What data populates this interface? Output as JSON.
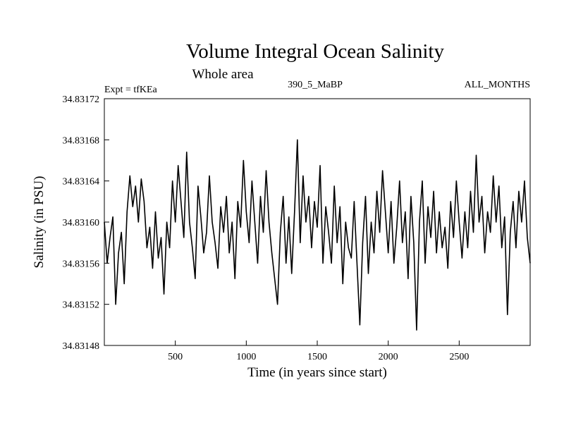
{
  "chart_data": {
    "type": "line",
    "title": "Volume Integral Ocean Salinity",
    "subtitle": "Whole area",
    "header_left": "Expt = tfKEa",
    "header_center": "390_5_MaBP",
    "header_right": "ALL_MONTHS",
    "xlabel": "Time (in years since start)",
    "ylabel": "Salinity (in PSU)",
    "xlim": [
      0,
      3000
    ],
    "ylim": [
      34.83148,
      34.83172
    ],
    "xticks": [
      500,
      1000,
      1500,
      2000,
      2500
    ],
    "yticks": [
      "34.83148",
      "34.83152",
      "34.83156",
      "34.83160",
      "34.83164",
      "34.83168",
      "34.83172"
    ],
    "grid": false,
    "series": [
      {
        "x": [
          0,
          20,
          40,
          60,
          80,
          100,
          120,
          140,
          160,
          180,
          200,
          220,
          240,
          260,
          280,
          300,
          320,
          340,
          360,
          380,
          400,
          420,
          440,
          460,
          480,
          500,
          520,
          540,
          560,
          580,
          600,
          620,
          640,
          660,
          680,
          700,
          720,
          740,
          760,
          780,
          800,
          820,
          840,
          860,
          880,
          900,
          920,
          940,
          960,
          980,
          1000,
          1020,
          1040,
          1060,
          1080,
          1100,
          1120,
          1140,
          1160,
          1180,
          1200,
          1220,
          1240,
          1260,
          1280,
          1300,
          1320,
          1340,
          1360,
          1380,
          1400,
          1420,
          1440,
          1460,
          1480,
          1500,
          1520,
          1540,
          1560,
          1580,
          1600,
          1620,
          1640,
          1660,
          1680,
          1700,
          1720,
          1740,
          1760,
          1780,
          1800,
          1820,
          1840,
          1860,
          1880,
          1900,
          1920,
          1940,
          1960,
          1980,
          2000,
          2020,
          2040,
          2060,
          2080,
          2100,
          2120,
          2140,
          2160,
          2180,
          2200,
          2220,
          2240,
          2260,
          2280,
          2300,
          2320,
          2340,
          2360,
          2380,
          2400,
          2420,
          2440,
          2460,
          2480,
          2500,
          2520,
          2540,
          2560,
          2580,
          2600,
          2620,
          2640,
          2660,
          2680,
          2700,
          2720,
          2740,
          2760,
          2780,
          2800,
          2820,
          2840,
          2860,
          2880,
          2900,
          2920,
          2940,
          2960,
          2980,
          3000
        ],
        "values": [
          34.8316,
          34.83156,
          34.831585,
          34.831605,
          34.83152,
          34.83157,
          34.83159,
          34.83154,
          34.83161,
          34.831645,
          34.831615,
          34.831635,
          34.8316,
          34.831642,
          34.83162,
          34.831575,
          34.831595,
          34.831555,
          34.83161,
          34.831565,
          34.831585,
          34.83153,
          34.8316,
          34.831575,
          34.83164,
          34.8316,
          34.831655,
          34.83162,
          34.831585,
          34.831668,
          34.8316,
          34.831575,
          34.831545,
          34.831635,
          34.831605,
          34.83157,
          34.83159,
          34.831645,
          34.8316,
          34.83158,
          34.831555,
          34.831615,
          34.83159,
          34.831625,
          34.83157,
          34.8316,
          34.831545,
          34.83162,
          34.831595,
          34.83166,
          34.83161,
          34.83158,
          34.83164,
          34.8316,
          34.83156,
          34.831625,
          34.83159,
          34.83165,
          34.8316,
          34.83157,
          34.831545,
          34.83152,
          34.83159,
          34.831625,
          34.83156,
          34.831605,
          34.83155,
          34.83161,
          34.83168,
          34.83158,
          34.831645,
          34.8316,
          34.831625,
          34.831575,
          34.83162,
          34.831595,
          34.831655,
          34.83156,
          34.831615,
          34.83159,
          34.83156,
          34.831635,
          34.83158,
          34.831615,
          34.83154,
          34.8316,
          34.831575,
          34.831565,
          34.83162,
          34.83156,
          34.8315,
          34.83158,
          34.831625,
          34.83155,
          34.8316,
          34.83157,
          34.83163,
          34.83159,
          34.83165,
          34.83161,
          34.83157,
          34.83162,
          34.83156,
          34.831595,
          34.83164,
          34.83158,
          34.83161,
          34.831545,
          34.831625,
          34.83158,
          34.831495,
          34.8316,
          34.83164,
          34.83156,
          34.831615,
          34.831585,
          34.83163,
          34.83157,
          34.83161,
          34.831575,
          34.831595,
          34.831555,
          34.83162,
          34.831585,
          34.83164,
          34.8316,
          34.831565,
          34.83161,
          34.831575,
          34.83163,
          34.83159,
          34.831665,
          34.8316,
          34.831625,
          34.83157,
          34.83161,
          34.83159,
          34.831645,
          34.8316,
          34.831635,
          34.831575,
          34.831605,
          34.83151,
          34.83159,
          34.83162,
          34.831575,
          34.83163,
          34.8316,
          34.83164,
          34.831585,
          34.83156
        ]
      }
    ]
  }
}
